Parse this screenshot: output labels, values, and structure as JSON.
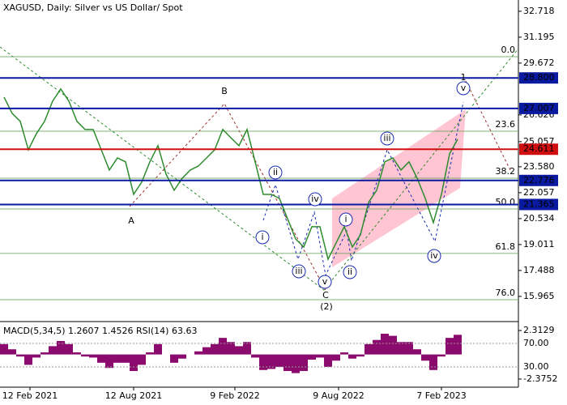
{
  "chart_data": {
    "type": "line",
    "title": "XAGUSD, Daily:  Silver vs US Dollar/ Spot",
    "xlim": [
      -0.5,
      63.5
    ],
    "xticks": [
      {
        "value": 3.2,
        "label": "12 Feb 2021"
      },
      {
        "value": 16,
        "label": "12 Aug 2021"
      },
      {
        "value": 28.5,
        "label": "9 Feb 2022"
      },
      {
        "value": 41.3,
        "label": "9 Aug 2022"
      },
      {
        "value": 54,
        "label": "7 Feb 2023"
      }
    ],
    "ylim": [
      14.58,
      33.38
    ],
    "yticks": [
      32.718,
      31.195,
      29.672,
      26.626,
      25.057,
      {
        "value": 23.58,
        "label": "23.580"
      },
      22.057,
      20.534,
      19.011,
      17.488,
      15.965
    ],
    "series": [
      {
        "color": "#2e8b2e",
        "values": [
          27.67,
          26.72,
          26.25,
          24.58,
          25.53,
          26.25,
          27.44,
          28.15,
          27.44,
          26.25,
          25.77,
          25.77,
          24.58,
          23.39,
          24.1,
          23.87,
          21.96,
          22.68,
          23.87,
          24.82,
          23.15,
          22.2,
          22.91,
          23.39,
          23.63,
          24.1,
          24.58,
          25.77,
          25.29,
          24.82,
          25.77,
          23.87,
          21.96,
          21.96,
          21.72,
          20.53,
          19.34,
          18.87,
          20.06,
          20.06,
          18.15,
          19.11,
          20.06,
          18.87,
          19.58,
          21.49,
          22.2,
          23.87,
          24.1,
          23.39,
          23.87,
          22.91,
          21.72,
          20.3,
          21.96,
          24.34,
          25.2
        ]
      }
    ],
    "levels": [
      {
        "value": 28.8,
        "label": "28.800",
        "color": "#0a1aa0"
      },
      {
        "value": 27.007,
        "label": "27.007",
        "color": "#0a1aa0"
      },
      {
        "value": 24.611,
        "label": "24.611",
        "color": "#d01010"
      },
      {
        "value": 22.776,
        "label": "22.776",
        "color": "#0a1aa0"
      },
      {
        "value": 21.365,
        "label": "21.365",
        "color": "#0a1aa0"
      }
    ],
    "fib_levels": [
      {
        "label": "0.0",
        "price": 30.05
      },
      {
        "label": "23.6",
        "price": 25.67
      },
      {
        "label": "38.2",
        "price": 22.91
      },
      {
        "label": "50.0",
        "price": 21.1
      },
      {
        "label": "61.8",
        "price": 18.49
      },
      {
        "label": "76.0",
        "price": 15.77
      }
    ],
    "annotations": [
      {
        "text": "B",
        "color": "#a0302a",
        "circled": false
      },
      {
        "text": "A",
        "color": "#a0302a",
        "circled": false
      },
      {
        "text": "C",
        "color": "#a0302a",
        "circled": false
      },
      {
        "text": "(2)",
        "color": "#2e8b2e",
        "circled": false
      },
      {
        "text": "1",
        "color": "#a0302a",
        "circled": false
      },
      {
        "text": "i",
        "color": "#1a2ab0",
        "circled": true
      },
      {
        "text": "ii",
        "color": "#1a2ab0",
        "circled": true
      },
      {
        "text": "iii",
        "color": "#1a2ab0",
        "circled": true
      },
      {
        "text": "iv",
        "color": "#1a2ab0",
        "circled": true
      },
      {
        "text": "v",
        "color": "#1a2ab0",
        "circled": true
      },
      {
        "text": "i",
        "color": "#1a2ab0",
        "circled": true
      },
      {
        "text": "ii",
        "color": "#1a2ab0",
        "circled": true
      },
      {
        "text": "iii",
        "color": "#1a2ab0",
        "circled": true
      },
      {
        "text": "iv",
        "color": "#1a2ab0",
        "circled": true
      },
      {
        "text": "v",
        "color": "#1a2ab0",
        "circled": true
      }
    ],
    "indicator": {
      "label": "MACD(5,34,5) 1.2607 1.4526 RSI(14) 63.63",
      "color": "#8b0a6e",
      "ylim": [
        -3.08,
        2.94
      ],
      "yticks": [
        2.3129,
        -2.3752
      ],
      "rsi_ylim": [
        -3.1,
        103.1
      ],
      "rsi_ticks": [
        {
          "value": 70,
          "label": "70.00"
        },
        {
          "value": 30,
          "label": "30.00"
        }
      ],
      "values": [
        1.0,
        0.5,
        -0.2,
        -1.0,
        -0.3,
        0.2,
        0.8,
        1.3,
        1.0,
        0.2,
        -0.2,
        -0.3,
        -0.8,
        -1.3,
        -0.8,
        -0.8,
        -1.6,
        -1.0,
        0.2,
        1.0,
        0.0,
        -0.8,
        -0.4,
        0.0,
        0.3,
        0.7,
        1.0,
        1.6,
        1.2,
        0.8,
        1.2,
        -0.3,
        -1.5,
        -1.4,
        -1.2,
        -1.6,
        -1.8,
        -1.6,
        -0.5,
        -0.3,
        -1.2,
        -0.6,
        0.2,
        -0.4,
        -0.2,
        1.0,
        1.4,
        2.0,
        1.8,
        1.2,
        1.2,
        0.5,
        -0.6,
        -1.5,
        -0.2,
        1.6,
        1.9
      ]
    }
  }
}
